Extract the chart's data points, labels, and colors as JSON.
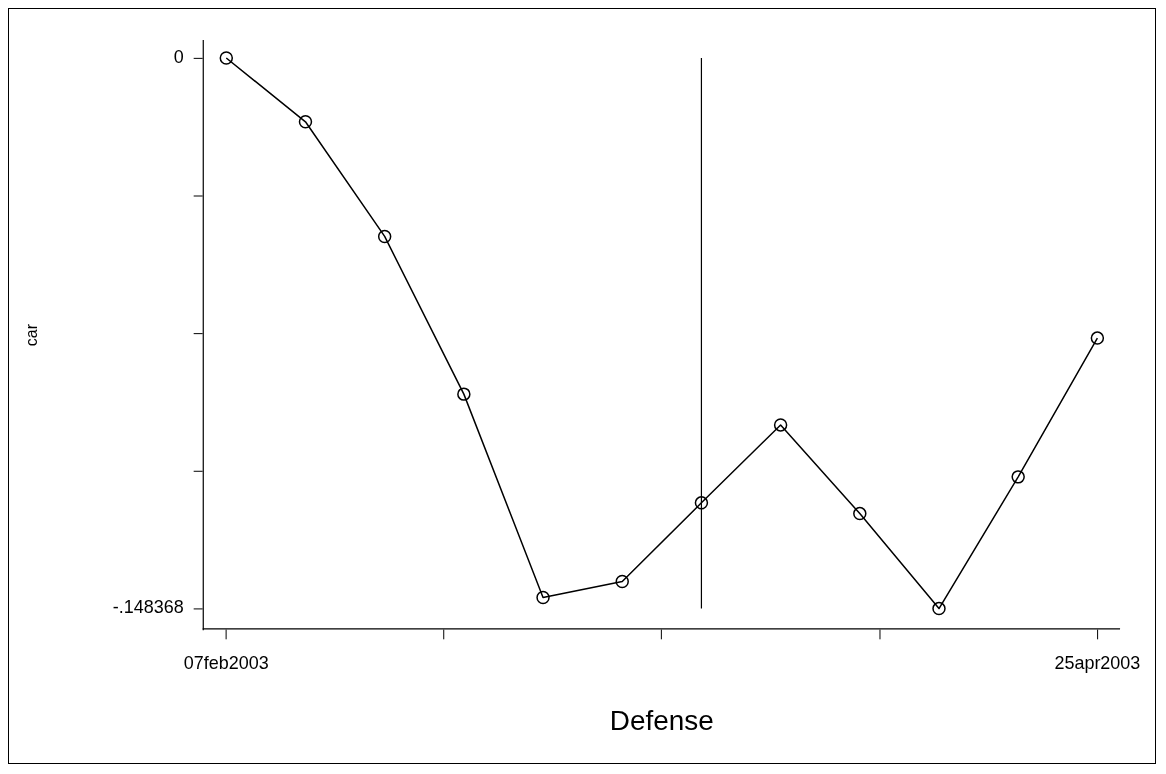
{
  "chart_data": {
    "type": "line",
    "xlabel": "Defense",
    "ylabel": "car",
    "x": [
      "2003-02-07",
      "2003-02-14",
      "2003-02-21",
      "2003-02-28",
      "2003-03-07",
      "2003-03-14",
      "2003-03-21",
      "2003-03-28",
      "2003-04-04",
      "2003-04-11",
      "2003-04-18",
      "2003-04-25"
    ],
    "series": [
      {
        "color": "#000000",
        "values": [
          0,
          -0.0172,
          -0.0481,
          -0.0906,
          -0.1454,
          -0.1411,
          -0.1199,
          -0.0989,
          -0.1228,
          -0.1484,
          -0.1129,
          -0.0755
        ]
      }
    ],
    "xlim": [
      "2003-02-05",
      "2003-04-27"
    ],
    "xticks": [
      {
        "value": "2003-02-07",
        "label": "07feb2003"
      },
      {
        "value": "2003-02-26T06:00",
        "label": null
      },
      {
        "value": "2003-03-17T12:00",
        "label": null
      },
      {
        "value": "2003-04-05T18:00",
        "label": null
      },
      {
        "value": "2003-04-25",
        "label": "25apr2003"
      }
    ],
    "ylim": [
      -0.154,
      0.0046
    ],
    "yticks": [
      0,
      {
        "value": -0.037092,
        "label": null
      },
      {
        "value": -0.074184,
        "label": null
      },
      {
        "value": -0.111276,
        "label": null
      },
      {
        "value": -0.148368,
        "label": "-.148368"
      }
    ],
    "ref_lines": [
      {
        "axis": "x",
        "value": "2003-03-21",
        "label": null,
        "color": "#000000"
      }
    ],
    "marker": "circle",
    "line_style": "solid",
    "grid": false,
    "legend": false
  }
}
